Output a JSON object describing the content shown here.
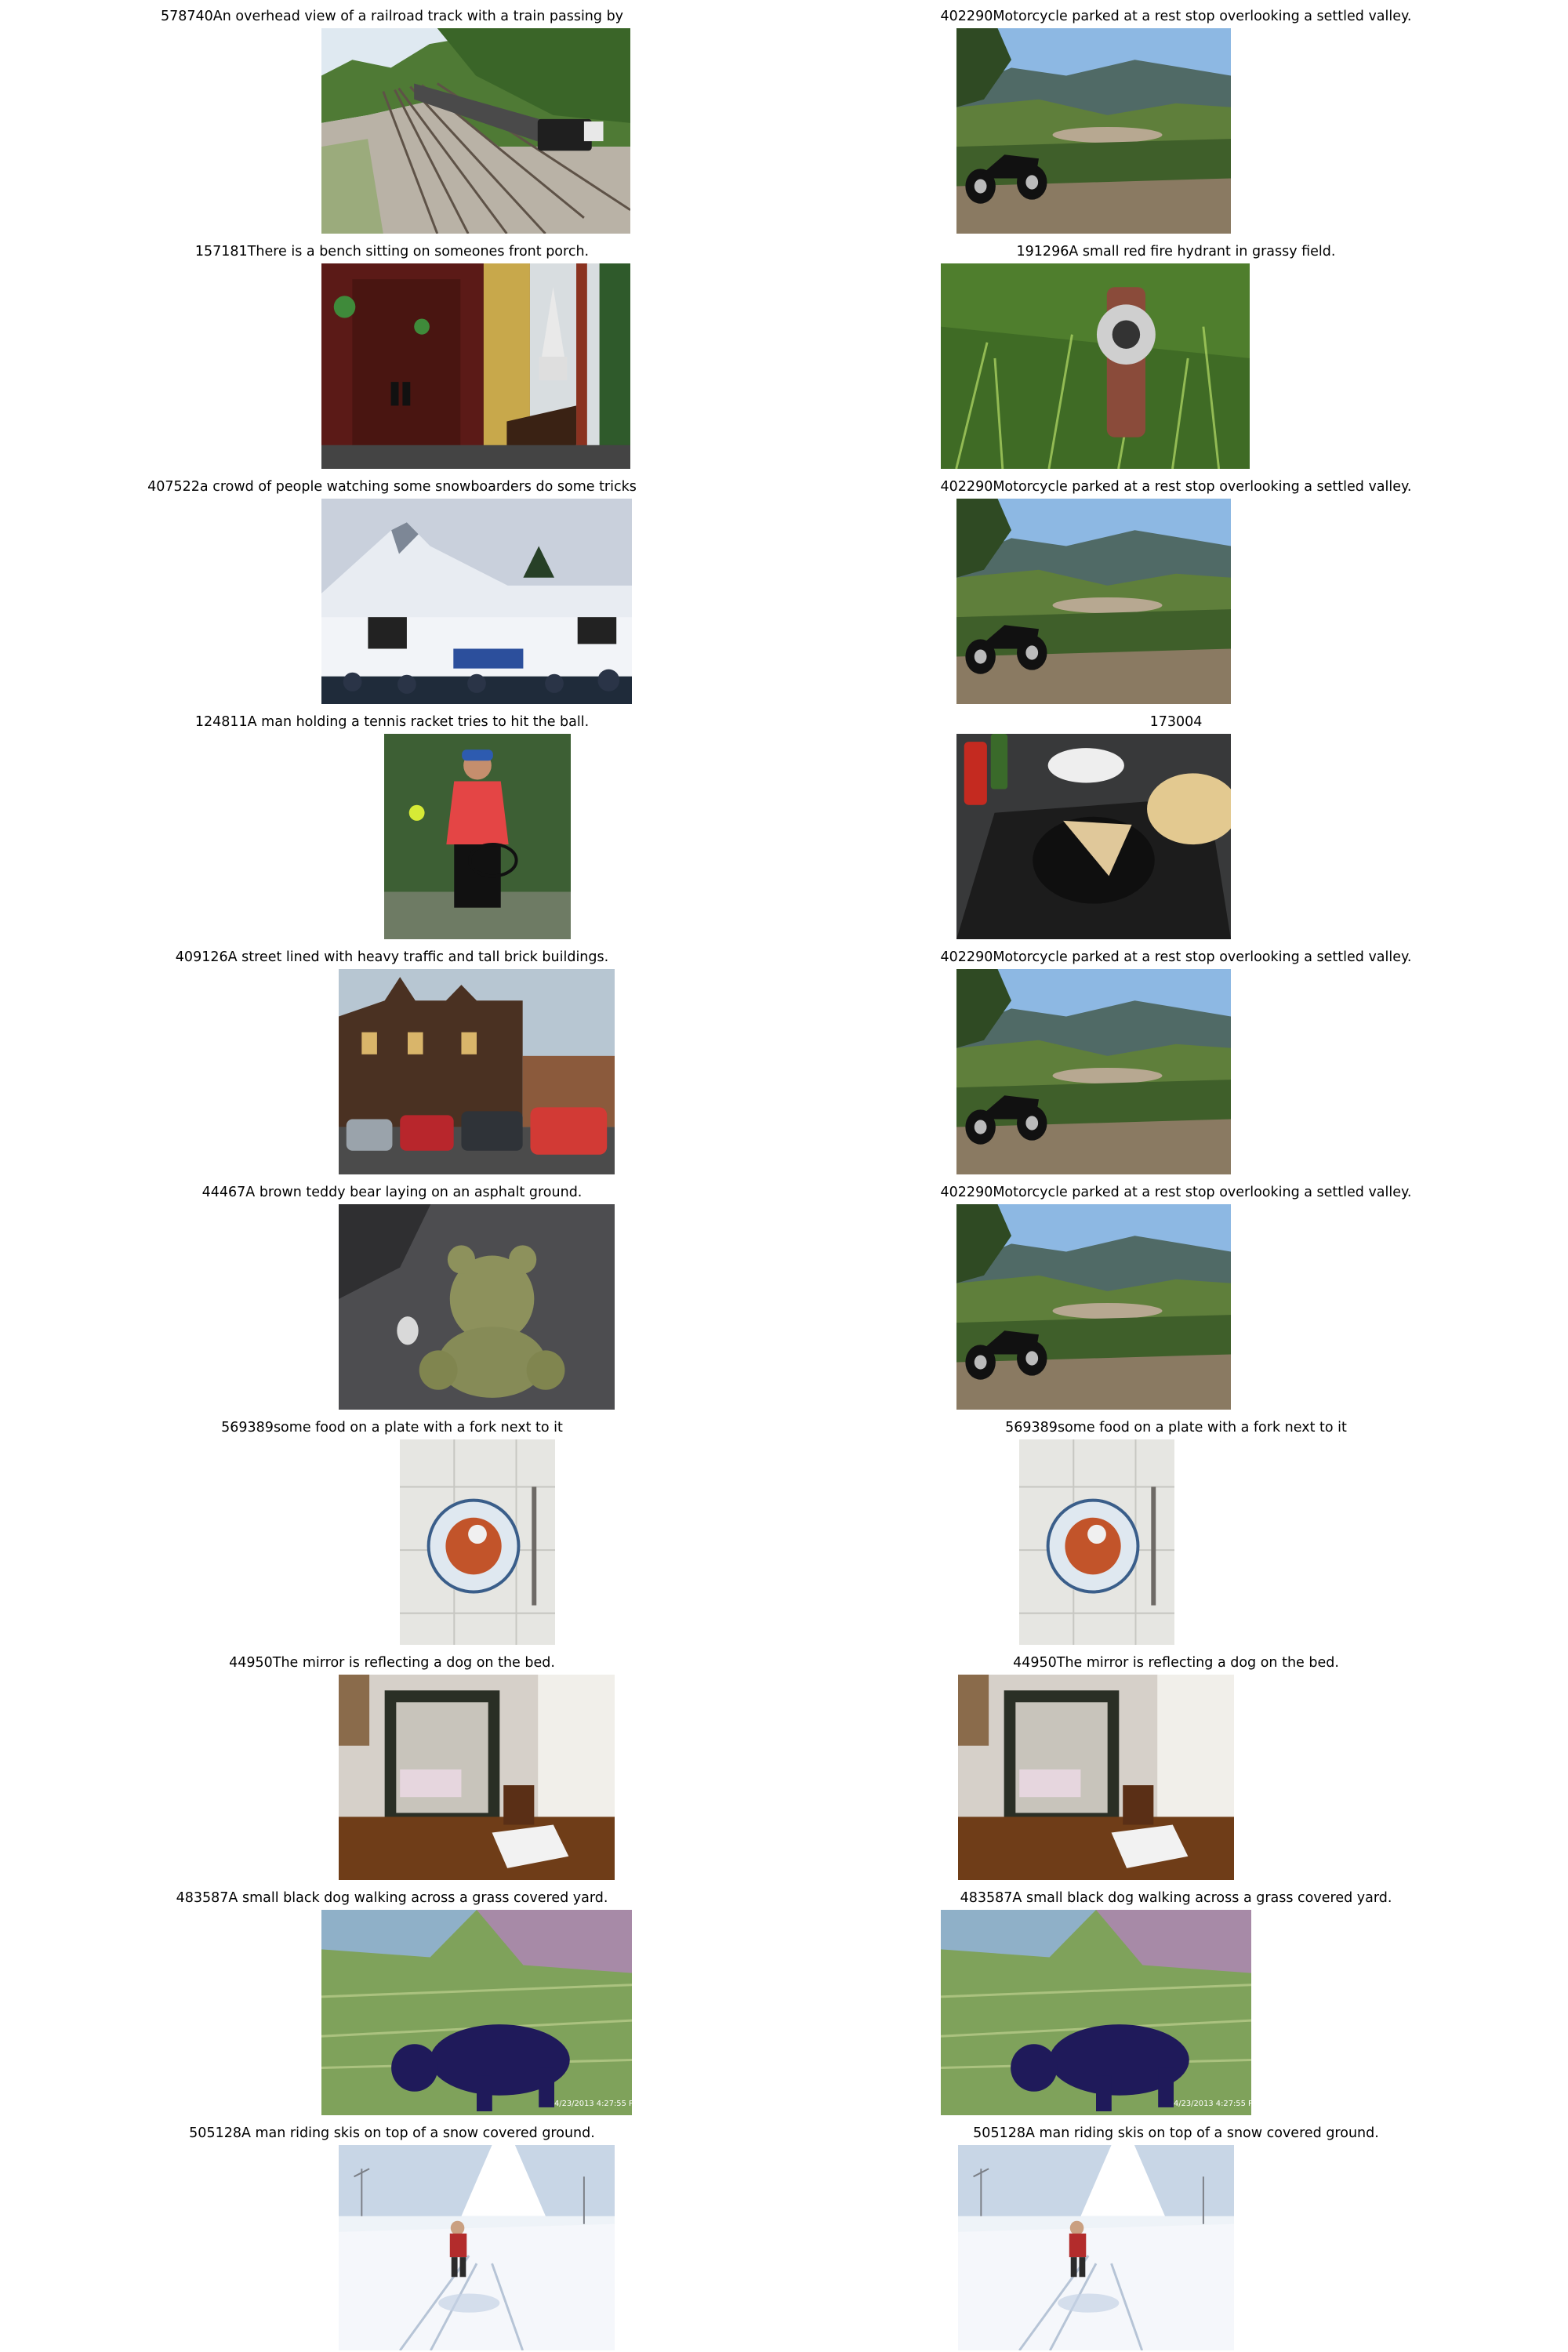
{
  "figure": {
    "cells": [
      {
        "caption": "578740An overhead view of a railroad track with a train passing by",
        "scene": "railroad-train"
      },
      {
        "caption": "402290Motorcycle parked at a rest stop overlooking a settled valley.",
        "scene": "motorcycle-valley"
      },
      {
        "caption": "157181There is a bench sitting on someones front porch.",
        "scene": "porch-bench"
      },
      {
        "caption": "191296A small red fire hydrant in grassy field.",
        "scene": "fire-hydrant-grass"
      },
      {
        "caption": "407522a crowd of people watching some snowboarders do some tricks",
        "scene": "snowboard-crowd"
      },
      {
        "caption": "402290Motorcycle parked at a rest stop overlooking a settled valley.",
        "scene": "motorcycle-valley"
      },
      {
        "caption": "124811A man holding a tennis racket tries to hit the ball.",
        "scene": "tennis-player"
      },
      {
        "caption": "173004",
        "scene": "pizza-table"
      },
      {
        "caption": "409126A street lined with heavy traffic and tall brick buildings.",
        "scene": "brick-street-traffic"
      },
      {
        "caption": "402290Motorcycle parked at a rest stop overlooking a settled valley.",
        "scene": "motorcycle-valley"
      },
      {
        "caption": "44467A brown teddy bear laying on an asphalt ground.",
        "scene": "teddy-bear-asphalt"
      },
      {
        "caption": "402290Motorcycle parked at a rest stop overlooking a settled valley.",
        "scene": "motorcycle-valley"
      },
      {
        "caption": "569389some food on a plate with a fork next to it",
        "scene": "food-plate-fork"
      },
      {
        "caption": "569389some food on a plate with a fork next to it",
        "scene": "food-plate-fork"
      },
      {
        "caption": "44950The mirror is reflecting a dog on the bed.",
        "scene": "mirror-dresser"
      },
      {
        "caption": "44950The mirror is reflecting a dog on the bed.",
        "scene": "mirror-dresser"
      },
      {
        "caption": "483587A small black dog walking across a grass covered yard.",
        "scene": "black-dog-grass"
      },
      {
        "caption": "483587A small black dog walking across a grass covered yard.",
        "scene": "black-dog-grass"
      },
      {
        "caption": "505128A man riding skis on top of a snow covered ground.",
        "scene": "skier-snow"
      },
      {
        "caption": "505128A man riding skis on top of a snow covered ground.",
        "scene": "skier-snow"
      }
    ]
  }
}
